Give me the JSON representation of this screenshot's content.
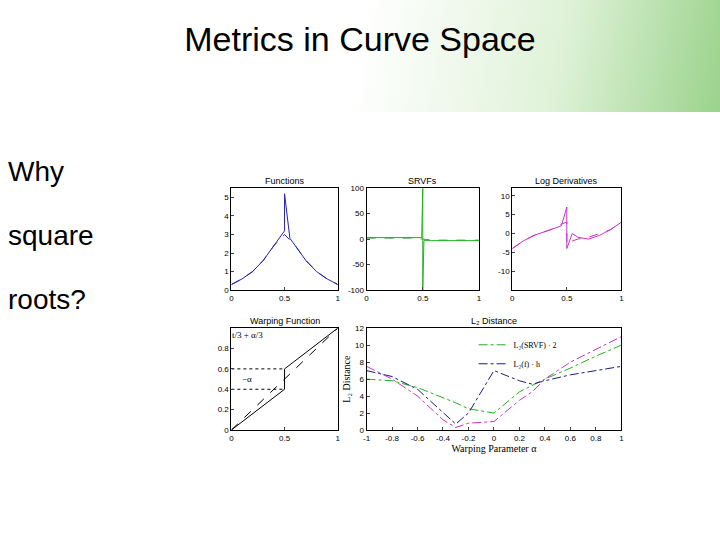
{
  "slide": {
    "title": "Metrics in Curve Space",
    "side_text": [
      "Why",
      "square",
      "roots?"
    ]
  },
  "chart_data": [
    {
      "type": "line",
      "title": "Functions",
      "xlim": [
        0,
        1
      ],
      "xticks": [
        0,
        0.5,
        1
      ],
      "ylim": [
        0,
        5.5
      ],
      "yticks": [
        0,
        1,
        2,
        3,
        4,
        5
      ],
      "series": [
        {
          "color": "#2424a8",
          "line_style": "solid",
          "x": [
            0,
            0.1,
            0.2,
            0.3,
            0.4,
            0.45,
            0.5,
            0.5,
            0.55,
            0.6,
            0.7,
            0.8,
            0.9,
            1
          ],
          "values": [
            0.3,
            0.6,
            1.0,
            1.6,
            2.4,
            2.8,
            3.2,
            5.2,
            2.8,
            2.4,
            1.6,
            1.0,
            0.6,
            0.3
          ]
        },
        {
          "color": "#2424a8",
          "line_style": "dash",
          "x": [
            0,
            0.1,
            0.2,
            0.3,
            0.4,
            0.5,
            0.6,
            0.7,
            0.8,
            0.9,
            1
          ],
          "values": [
            0.3,
            0.6,
            1.0,
            1.6,
            2.4,
            3.0,
            2.4,
            1.6,
            1.0,
            0.6,
            0.3
          ]
        }
      ]
    },
    {
      "type": "line",
      "title": "SRVFs",
      "xlim": [
        0,
        1
      ],
      "xticks": [
        0,
        0.5,
        1
      ],
      "ylim": [
        -100,
        100
      ],
      "yticks": [
        -100,
        -50,
        0,
        50,
        100
      ],
      "series": [
        {
          "color": "#22b022",
          "line_style": "solid",
          "x": [
            0,
            0.1,
            0.2,
            0.3,
            0.4,
            0.49,
            0.5,
            0.5,
            0.51,
            0.6,
            0.7,
            0.8,
            0.9,
            1
          ],
          "values": [
            3,
            3,
            3,
            3,
            3,
            3,
            100,
            -100,
            -3,
            -3,
            -3,
            -3,
            -3,
            -3
          ]
        },
        {
          "color": "#22b022",
          "line_style": "dash",
          "x": [
            0,
            0.1,
            0.2,
            0.3,
            0.4,
            0.5,
            0.6,
            0.7,
            0.8,
            0.9,
            1
          ],
          "values": [
            2,
            2,
            2,
            2,
            2,
            0,
            -2,
            -2,
            -2,
            -2,
            -2
          ]
        }
      ]
    },
    {
      "type": "line",
      "title": "Log Derivatives",
      "xlim": [
        0,
        1
      ],
      "xticks": [
        0,
        0.5,
        1
      ],
      "ylim": [
        -15,
        12
      ],
      "yticks": [
        -10,
        -5,
        0,
        5,
        10
      ],
      "series": [
        {
          "color": "#c832c8",
          "line_style": "solid",
          "x": [
            0,
            0.1,
            0.2,
            0.3,
            0.4,
            0.45,
            0.5,
            0.5,
            0.55,
            0.6,
            0.7,
            0.8,
            0.9,
            1
          ],
          "values": [
            -4,
            -2,
            -0.5,
            0.5,
            1.5,
            2,
            7,
            -4,
            0,
            -1,
            -1.5,
            -0.5,
            1,
            3
          ]
        },
        {
          "color": "#c832c8",
          "line_style": "dash",
          "x": [
            0,
            0.1,
            0.2,
            0.3,
            0.4,
            0.45,
            0.5,
            0.5,
            0.55,
            0.6,
            0.7,
            0.8,
            0.9,
            1
          ],
          "values": [
            -4,
            -2,
            -0.5,
            0.5,
            1.5,
            2.5,
            3,
            -3,
            -2,
            -1.5,
            -1,
            0,
            1,
            3
          ]
        }
      ]
    },
    {
      "type": "line",
      "title": "Warping Function",
      "xlim": [
        0,
        1
      ],
      "xticks": [
        0,
        0.5,
        1
      ],
      "ylim": [
        0,
        1
      ],
      "yticks": [
        0,
        0.2,
        0.4,
        0.6,
        0.8
      ],
      "annotations": [
        {
          "text": "t/3 + α/3",
          "x": 0.15,
          "y": 0.93
        },
        {
          "text": "−α",
          "x": 0.15,
          "y": 0.5
        }
      ],
      "series": [
        {
          "color": "#000000",
          "line_style": "dash",
          "x": [
            0,
            1
          ],
          "values": [
            0,
            1
          ]
        },
        {
          "color": "#000000",
          "line_style": "solid",
          "x": [
            0,
            0.5,
            0.5,
            1
          ],
          "values": [
            0,
            0.4,
            0.6,
            1
          ]
        },
        {
          "color": "#000000",
          "line_style": "dot",
          "x": [
            0,
            0.5
          ],
          "values": [
            0.4,
            0.4
          ]
        },
        {
          "color": "#000000",
          "line_style": "dot",
          "x": [
            0,
            0.5
          ],
          "values": [
            0.6,
            0.6
          ]
        }
      ]
    },
    {
      "type": "line",
      "title": "L₂ Distance",
      "x_label": "Warping Parameter α",
      "y_label": "L₂ Distance",
      "legend": "upper center",
      "xlim": [
        -1,
        1
      ],
      "xticks": [
        -1,
        -0.8,
        -0.6,
        -0.4,
        -0.2,
        0,
        0.2,
        0.4,
        0.6,
        0.8,
        1
      ],
      "ylim": [
        0,
        12
      ],
      "yticks": [
        0,
        2,
        4,
        6,
        8,
        10,
        12
      ],
      "series": [
        {
          "name": "L₂(SRVF) · 2",
          "color": "#22b022",
          "line_style": "dashdot",
          "x": [
            -1,
            -0.8,
            -0.6,
            -0.4,
            -0.3,
            -0.2,
            0,
            0.2,
            0.3,
            0.4,
            0.6,
            0.8,
            1
          ],
          "values": [
            6,
            5.8,
            5,
            3.8,
            3.2,
            2.5,
            2,
            4.5,
            5.3,
            6,
            7.3,
            8.7,
            10
          ]
        },
        {
          "name": "L₂(f) · h",
          "color": "#1a1a80",
          "line_style": "dashdot",
          "x": [
            -1,
            -0.8,
            -0.6,
            -0.4,
            -0.3,
            -0.2,
            0,
            0.2,
            0.3,
            0.4,
            0.6,
            0.8,
            1
          ],
          "values": [
            7,
            6.3,
            4.8,
            2,
            0.7,
            2,
            7,
            5.8,
            5.4,
            5.8,
            6.5,
            7,
            7.5
          ]
        },
        {
          "color": "#c832c8",
          "line_style": "dashdot",
          "x": [
            -1,
            -0.8,
            -0.6,
            -0.4,
            -0.3,
            -0.2,
            0,
            0.2,
            0.3,
            0.4,
            0.6,
            0.8,
            1
          ],
          "values": [
            7.5,
            6,
            4,
            1.2,
            0.3,
            0.8,
            1,
            3.5,
            4.5,
            6,
            8,
            9.5,
            11
          ]
        }
      ]
    }
  ]
}
